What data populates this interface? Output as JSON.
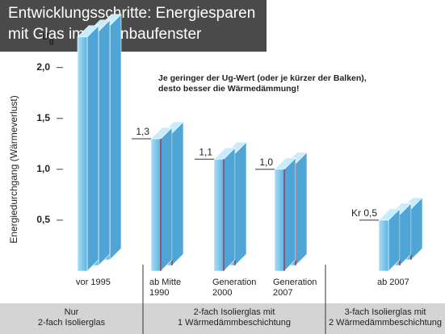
{
  "chart_data": {
    "type": "bar",
    "title": "Entwicklungsschritte: Energiesparen\nmit Glas im Wohnbaufenster",
    "y_label": "Energiedurchgang (Wärmeverlust)",
    "y_unit": {
      "symbol": "U",
      "subscript": "g"
    },
    "annotation": "Je geringer der Ug-Wert (oder je kürzer der Balken),\ndesto besser die Wärmedämmung!",
    "categories": [
      "vor 1995",
      "ab Mitte\n1990",
      "Generation\n2000",
      "Generation\n2007",
      "ab 2007"
    ],
    "values": [
      2.3,
      1.3,
      1.1,
      1.0,
      0.5
    ],
    "value_labels": [
      null,
      "1,3",
      "1,1",
      "1,0",
      "Kr 0,5"
    ],
    "groups": [
      "Nur\n2-fach Isolierglas",
      "2-fach Isolierglas mit\n1 Wärmedämmbeschichtung",
      "3-fach Isolierglas mit\n2 Wärmedämmbeschichtung"
    ],
    "color": "#7fc8ec",
    "coating_color": "#b0203a",
    "ylim": [
      0,
      2.6
    ],
    "yticks": [
      {
        "value": 0.5,
        "label": "0,5"
      },
      {
        "value": 1.0,
        "label": "1,0"
      },
      {
        "value": 1.5,
        "label": "1,5"
      },
      {
        "value": 2.0,
        "label": "2,0"
      }
    ]
  }
}
